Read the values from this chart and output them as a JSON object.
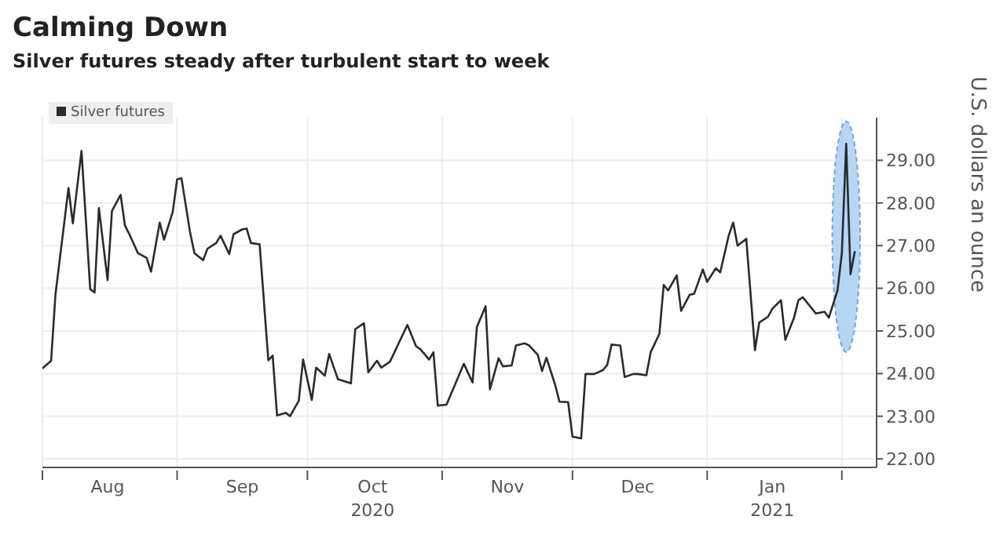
{
  "chart_data": {
    "type": "line",
    "title": "Calming Down",
    "subtitle": "Silver futures steady after turbulent start to week",
    "ylabel": "U.S. dollars an ounce",
    "x": [
      "2020-08-01",
      "2020-08-03",
      "2020-08-04",
      "2020-08-07",
      "2020-08-08",
      "2020-08-10",
      "2020-08-12",
      "2020-08-13",
      "2020-08-14",
      "2020-08-16",
      "2020-08-17",
      "2020-08-19",
      "2020-08-20",
      "2020-08-21",
      "2020-08-23",
      "2020-08-25",
      "2020-08-26",
      "2020-08-28",
      "2020-08-29",
      "2020-08-31",
      "2020-09-01",
      "2020-09-02",
      "2020-09-04",
      "2020-09-05",
      "2020-09-07",
      "2020-09-08",
      "2020-09-10",
      "2020-09-11",
      "2020-09-13",
      "2020-09-14",
      "2020-09-16",
      "2020-09-17",
      "2020-09-18",
      "2020-09-20",
      "2020-09-22",
      "2020-09-23",
      "2020-09-24",
      "2020-09-26",
      "2020-09-27",
      "2020-09-29",
      "2020-09-30",
      "2020-10-02",
      "2020-10-03",
      "2020-10-05",
      "2020-10-06",
      "2020-10-08",
      "2020-10-11",
      "2020-10-12",
      "2020-10-14",
      "2020-10-15",
      "2020-10-17",
      "2020-10-18",
      "2020-10-20",
      "2020-10-24",
      "2020-10-26",
      "2020-10-27",
      "2020-10-29",
      "2020-10-30",
      "2020-10-31",
      "2020-11-02",
      "2020-11-06",
      "2020-11-08",
      "2020-11-09",
      "2020-11-11",
      "2020-11-12",
      "2020-11-14",
      "2020-11-15",
      "2020-11-17",
      "2020-11-18",
      "2020-11-20",
      "2020-11-21",
      "2020-11-23",
      "2020-11-24",
      "2020-11-25",
      "2020-11-27",
      "2020-11-28",
      "2020-11-30",
      "2020-12-01",
      "2020-12-03",
      "2020-12-04",
      "2020-12-06",
      "2020-12-08",
      "2020-12-09",
      "2020-12-10",
      "2020-12-12",
      "2020-12-13",
      "2020-12-15",
      "2020-12-16",
      "2020-12-18",
      "2020-12-19",
      "2020-12-21",
      "2020-12-22",
      "2020-12-23",
      "2020-12-25",
      "2020-12-26",
      "2020-12-28",
      "2020-12-29",
      "2020-12-31",
      "2021-01-01",
      "2021-01-03",
      "2021-01-04",
      "2021-01-06",
      "2021-01-07",
      "2021-01-08",
      "2021-01-10",
      "2021-01-12",
      "2021-01-13",
      "2021-01-15",
      "2021-01-16",
      "2021-01-18",
      "2021-01-19",
      "2021-01-21",
      "2021-01-22",
      "2021-01-23",
      "2021-01-25",
      "2021-01-26",
      "2021-01-28",
      "2021-01-29",
      "2021-01-31",
      "2021-02-01",
      "2021-02-02",
      "2021-02-03",
      "2021-02-04"
    ],
    "series": [
      {
        "name": "Silver futures",
        "color": "#2b2b2b",
        "values": [
          24.12,
          24.3,
          25.85,
          28.35,
          27.52,
          29.22,
          25.98,
          25.9,
          27.88,
          26.19,
          27.81,
          28.19,
          27.47,
          27.27,
          26.82,
          26.71,
          26.39,
          27.54,
          27.14,
          27.79,
          28.55,
          28.58,
          27.3,
          26.82,
          26.66,
          26.93,
          27.06,
          27.23,
          26.8,
          27.27,
          27.38,
          27.4,
          27.06,
          27.03,
          24.31,
          24.42,
          23.02,
          23.08,
          23.0,
          23.36,
          24.33,
          23.38,
          24.14,
          23.95,
          24.46,
          23.87,
          23.77,
          25.04,
          25.18,
          24.03,
          24.3,
          24.14,
          24.28,
          25.14,
          24.64,
          24.57,
          24.33,
          24.5,
          23.25,
          23.27,
          24.23,
          23.79,
          25.09,
          25.58,
          23.63,
          24.36,
          24.17,
          24.19,
          24.66,
          24.71,
          24.66,
          24.44,
          24.06,
          24.37,
          23.74,
          23.34,
          23.33,
          22.52,
          22.48,
          23.99,
          23.99,
          24.08,
          24.2,
          24.68,
          24.66,
          23.92,
          23.99,
          23.99,
          23.96,
          24.5,
          24.93,
          26.08,
          25.95,
          26.3,
          25.47,
          25.85,
          25.87,
          26.44,
          26.15,
          26.47,
          26.37,
          27.25,
          27.54,
          27.0,
          27.16,
          24.55,
          25.2,
          25.33,
          25.52,
          25.72,
          24.79,
          25.31,
          25.72,
          25.79,
          25.54,
          25.41,
          25.45,
          25.31,
          25.95,
          26.82,
          29.39,
          26.33,
          26.87
        ]
      }
    ],
    "xlim": [
      "2020-08-01",
      "2021-02-09"
    ],
    "xticks": [
      {
        "value": "2020-08-01",
        "label": null
      },
      {
        "value": "2020-08-16",
        "label": "Aug"
      },
      {
        "value": "2020-09-01",
        "label": null
      },
      {
        "value": "2020-09-16",
        "label": "Sep"
      },
      {
        "value": "2020-10-01",
        "label": null
      },
      {
        "value": "2020-10-16",
        "label": "Oct\n2020"
      },
      {
        "value": "2020-11-01",
        "label": null
      },
      {
        "value": "2020-11-16",
        "label": "Nov"
      },
      {
        "value": "2020-12-01",
        "label": null
      },
      {
        "value": "2020-12-16",
        "label": "Dec"
      },
      {
        "value": "2021-01-01",
        "label": null
      },
      {
        "value": "2021-01-16",
        "label": "Jan\n2021"
      },
      {
        "value": "2021-02-01",
        "label": null
      }
    ],
    "ylim": [
      21.8,
      30
    ],
    "yticks": [
      {
        "value": 22,
        "label": "22.00"
      },
      {
        "value": 23,
        "label": "23.00"
      },
      {
        "value": 24,
        "label": "24.00"
      },
      {
        "value": 25,
        "label": "25.00"
      },
      {
        "value": 26,
        "label": "26.00"
      },
      {
        "value": 27,
        "label": "27.00"
      },
      {
        "value": 28,
        "label": "28.00"
      },
      {
        "value": 29,
        "label": "29.00"
      }
    ],
    "grid": true,
    "legend": "top left"
  }
}
